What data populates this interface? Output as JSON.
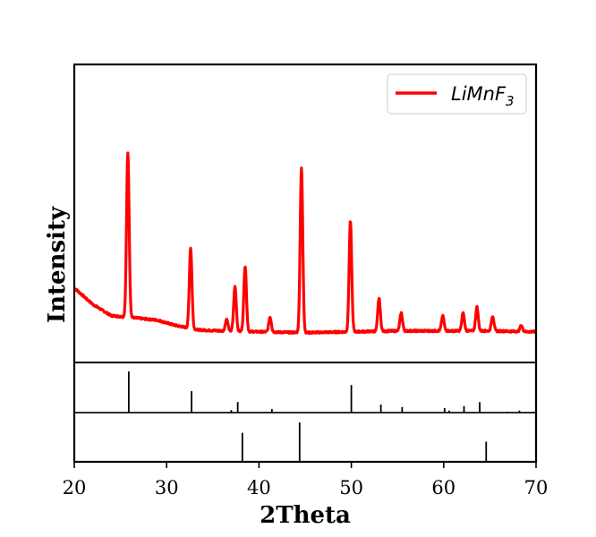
{
  "chart_data": {
    "type": "line",
    "xlabel": "2Theta",
    "ylabel": "Intensity",
    "xlim": [
      20,
      70
    ],
    "x_ticks": [
      20,
      30,
      40,
      50,
      60,
      70
    ],
    "y_ticks_shown": false,
    "grid": false,
    "legend": {
      "placement": "top-right",
      "entries": [
        {
          "label_main": "LiMnF",
          "label_sub": "3",
          "color": "#ff0000"
        }
      ]
    },
    "series": [
      {
        "name": "LiMnF3",
        "color": "#ff0000",
        "y_unit": "arbitrary intensity (0 = bottom of panel, 1 = top)",
        "peaks": [
          {
            "x": 25.8,
            "height": 0.55
          },
          {
            "x": 32.6,
            "height": 0.27
          },
          {
            "x": 36.5,
            "height": 0.04
          },
          {
            "x": 37.4,
            "height": 0.15
          },
          {
            "x": 38.5,
            "height": 0.22
          },
          {
            "x": 41.2,
            "height": 0.05
          },
          {
            "x": 44.6,
            "height": 0.55
          },
          {
            "x": 49.9,
            "height": 0.37
          },
          {
            "x": 53.0,
            "height": 0.11
          },
          {
            "x": 55.4,
            "height": 0.06
          },
          {
            "x": 59.9,
            "height": 0.05
          },
          {
            "x": 62.1,
            "height": 0.06
          },
          {
            "x": 63.6,
            "height": 0.08
          },
          {
            "x": 65.3,
            "height": 0.05
          },
          {
            "x": 68.4,
            "height": 0.02
          }
        ],
        "baseline": [
          {
            "x": 20.0,
            "y": 0.25
          },
          {
            "x": 22.0,
            "y": 0.195
          },
          {
            "x": 24.0,
            "y": 0.157
          },
          {
            "x": 26.5,
            "y": 0.15
          },
          {
            "x": 29.0,
            "y": 0.142
          },
          {
            "x": 31.0,
            "y": 0.124
          },
          {
            "x": 33.5,
            "y": 0.109
          },
          {
            "x": 36.0,
            "y": 0.106
          },
          {
            "x": 40.0,
            "y": 0.103
          },
          {
            "x": 45.0,
            "y": 0.1
          },
          {
            "x": 50.0,
            "y": 0.103
          },
          {
            "x": 55.0,
            "y": 0.106
          },
          {
            "x": 60.0,
            "y": 0.106
          },
          {
            "x": 65.0,
            "y": 0.106
          },
          {
            "x": 70.0,
            "y": 0.103
          }
        ]
      }
    ],
    "reference_panels": [
      {
        "color": "#000000",
        "lines": [
          {
            "x": 25.9,
            "h": 0.82
          },
          {
            "x": 32.7,
            "h": 0.43
          },
          {
            "x": 37.0,
            "h": 0.05
          },
          {
            "x": 37.7,
            "h": 0.21
          },
          {
            "x": 41.4,
            "h": 0.07
          },
          {
            "x": 50.0,
            "h": 0.55
          },
          {
            "x": 53.2,
            "h": 0.16
          },
          {
            "x": 55.5,
            "h": 0.11
          },
          {
            "x": 60.1,
            "h": 0.09
          },
          {
            "x": 60.6,
            "h": 0.04
          },
          {
            "x": 62.2,
            "h": 0.13
          },
          {
            "x": 63.9,
            "h": 0.21
          },
          {
            "x": 66.9,
            "h": 0.02
          },
          {
            "x": 68.2,
            "h": 0.04
          },
          {
            "x": 69.7,
            "h": 0.02
          }
        ]
      },
      {
        "color": "#000000",
        "lines": [
          {
            "x": 38.2,
            "h": 0.59
          },
          {
            "x": 44.4,
            "h": 0.8
          },
          {
            "x": 64.6,
            "h": 0.41
          }
        ]
      }
    ]
  }
}
